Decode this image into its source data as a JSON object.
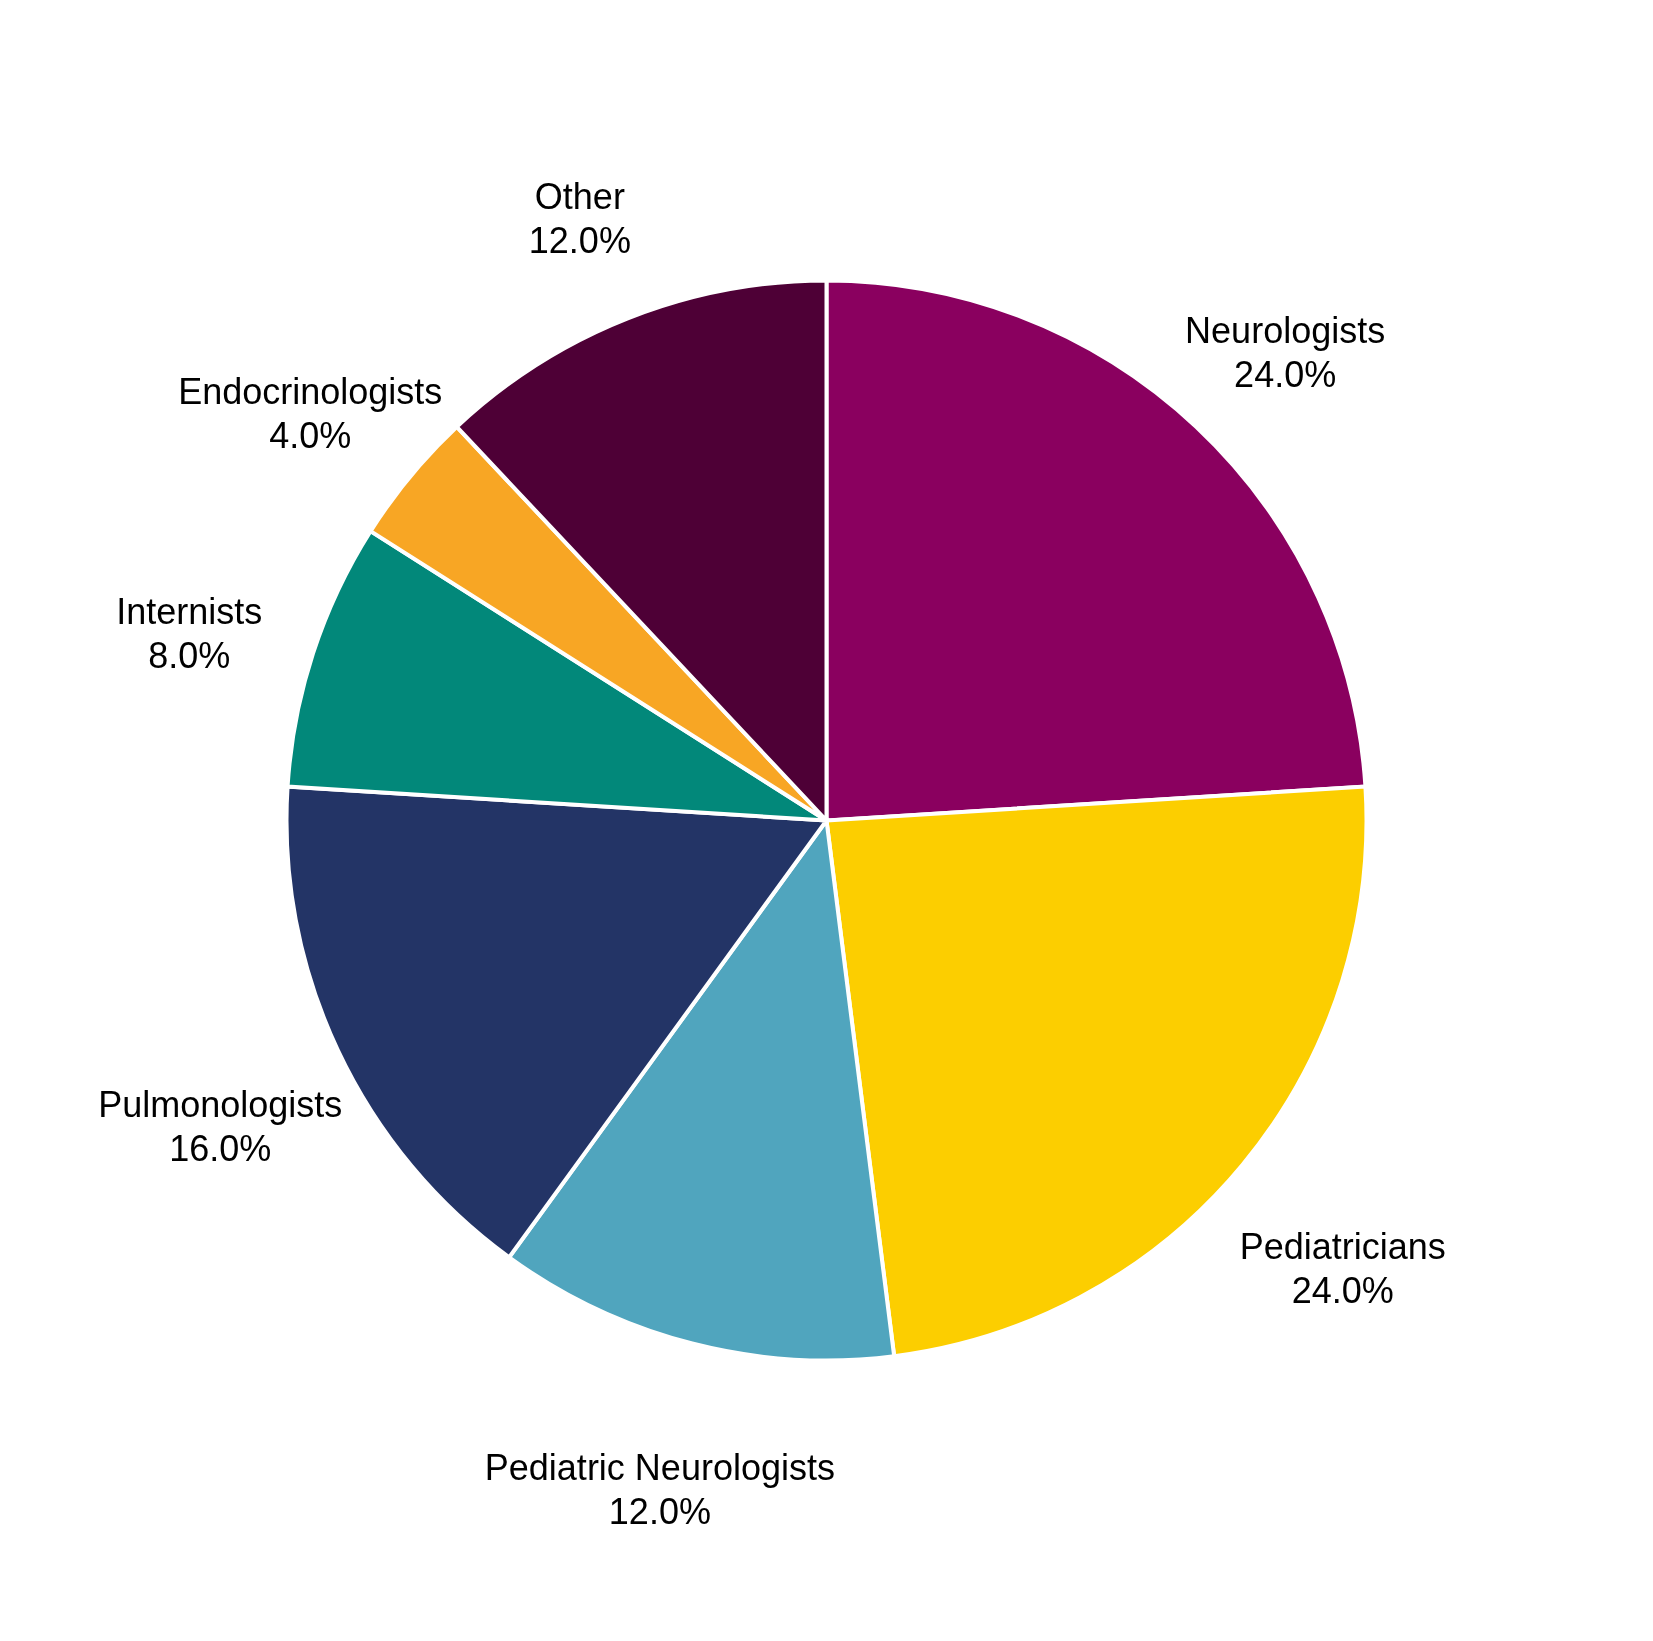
{
  "chart_data": {
    "type": "pie",
    "categories": [
      "Neurologists",
      "Pediatricians",
      "Pediatric Neurologists",
      "Pulmonologists",
      "Internists",
      "Endocrinologists",
      "Other"
    ],
    "values": [
      24.0,
      24.0,
      12.0,
      16.0,
      8.0,
      4.0,
      12.0
    ],
    "value_labels": [
      "24.0%",
      "24.0%",
      "12.0%",
      "16.0%",
      "8.0%",
      "4.0%",
      "12.0%"
    ],
    "colors": [
      "#8a005f",
      "#fcce00",
      "#50a5be",
      "#233466",
      "#02887a",
      "#f8a624",
      "#4e0036"
    ]
  }
}
